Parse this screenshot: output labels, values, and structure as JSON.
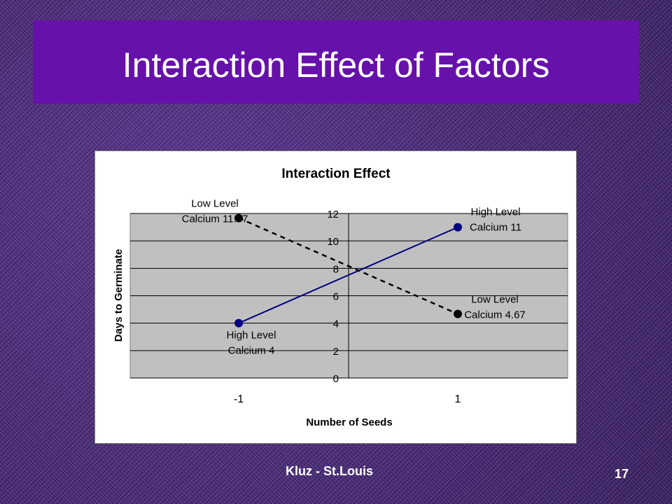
{
  "slide": {
    "title": "Interaction Effect of Factors",
    "footer": "Kluz - St.Louis",
    "page_number": "17",
    "title_bar_color": "#6611aa",
    "background_color": "#4a2a78"
  },
  "chart_data": {
    "type": "line",
    "title": "Interaction Effect",
    "xlabel": "Number of Seeds",
    "ylabel": "Days to Germinate",
    "x": [
      -1,
      1
    ],
    "x_tick_labels": [
      "-1",
      "1"
    ],
    "ylim": [
      0,
      12
    ],
    "y_ticks": [
      "0",
      "2",
      "4",
      "6",
      "8",
      "10",
      "12"
    ],
    "grid": true,
    "plot_background": "#c0c0c0",
    "series": [
      {
        "values": [
          4,
          11
        ],
        "color": "#000080",
        "line_style": "solid",
        "point_labels": [
          [
            "High Level",
            "Calcium 4"
          ],
          [
            "High Level",
            "Calcium 11"
          ]
        ]
      },
      {
        "values": [
          11.67,
          4.67
        ],
        "color": "#000000",
        "line_style": "dashed",
        "point_labels": [
          [
            "Low Level",
            "Calcium 11.67"
          ],
          [
            "Low Level",
            "Calcium 4.67"
          ]
        ]
      }
    ]
  }
}
